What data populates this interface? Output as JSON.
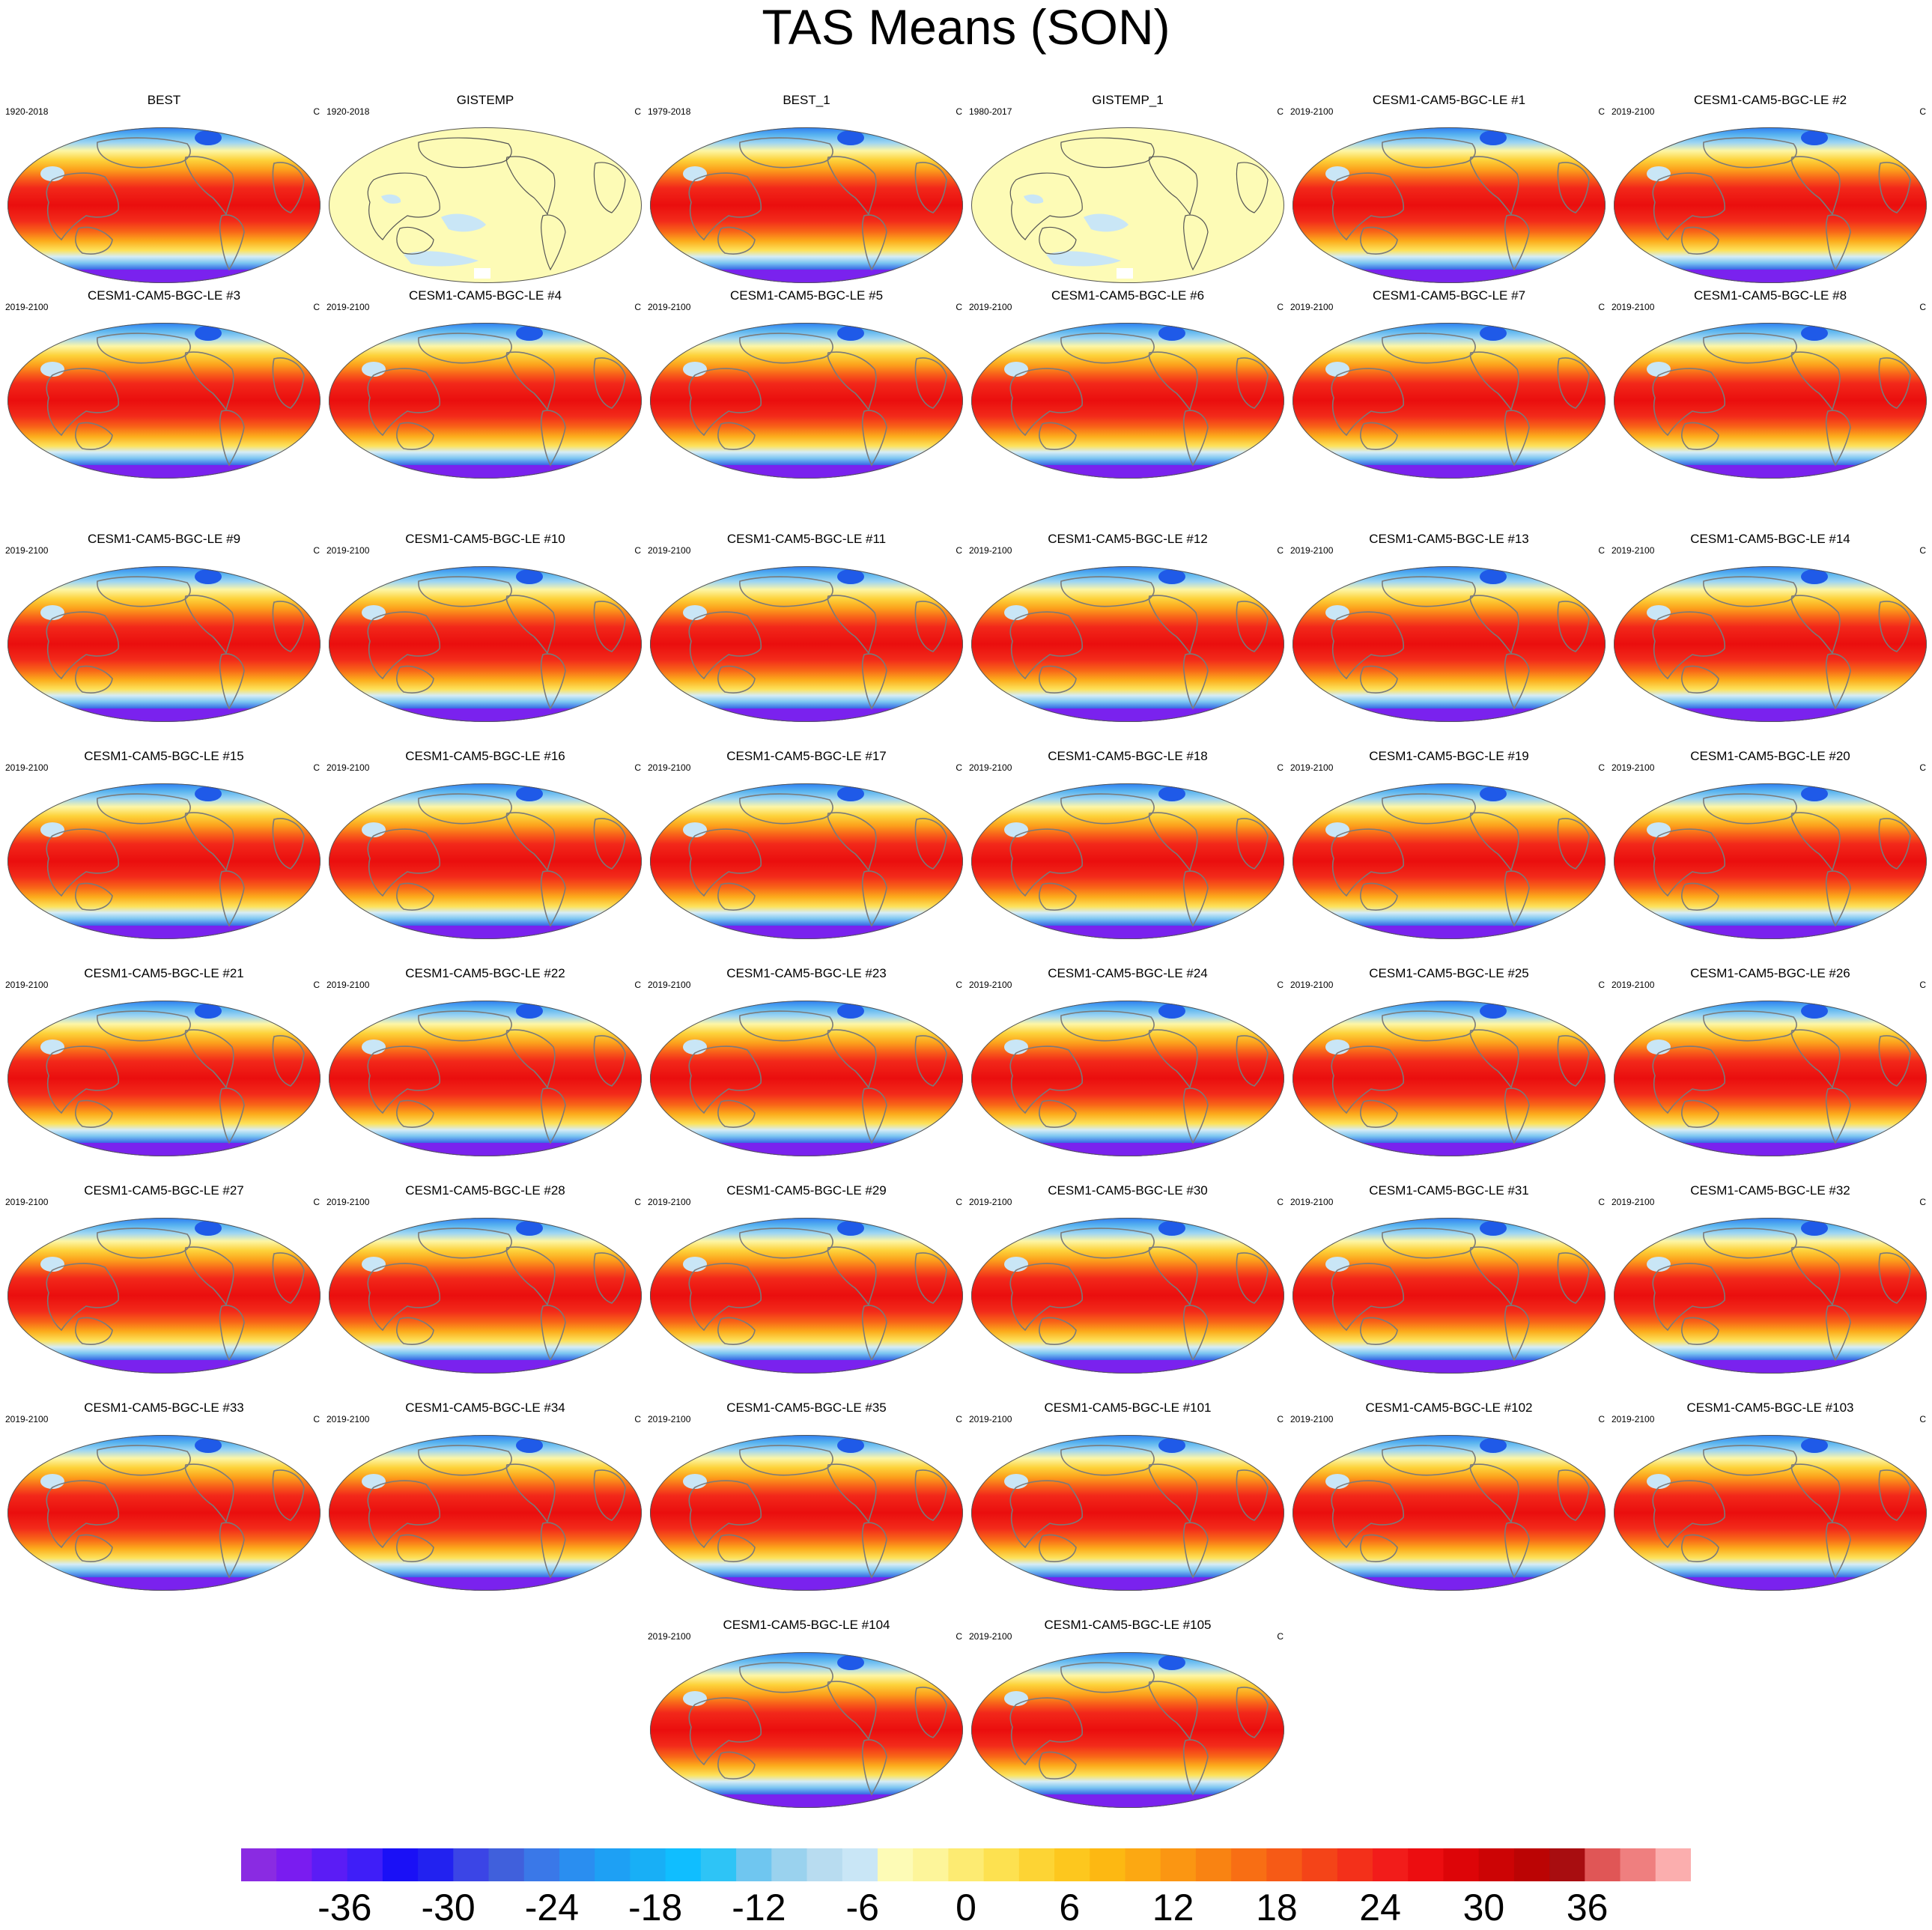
{
  "figure": {
    "title": "TAS Means (SON)",
    "units": "C"
  },
  "panels": [
    {
      "title": "BEST",
      "period": "1920-2018",
      "kind": "model"
    },
    {
      "title": "GISTEMP",
      "period": "1920-2018",
      "kind": "anomaly"
    },
    {
      "title": "BEST_1",
      "period": "1979-2018",
      "kind": "model"
    },
    {
      "title": "GISTEMP_1",
      "period": "1980-2017",
      "kind": "anomaly"
    },
    {
      "title": "CESM1-CAM5-BGC-LE #1",
      "period": "2019-2100",
      "kind": "model"
    },
    {
      "title": "CESM1-CAM5-BGC-LE #2",
      "period": "2019-2100",
      "kind": "model"
    },
    {
      "title": "CESM1-CAM5-BGC-LE #3",
      "period": "2019-2100",
      "kind": "model"
    },
    {
      "title": "CESM1-CAM5-BGC-LE #4",
      "period": "2019-2100",
      "kind": "model"
    },
    {
      "title": "CESM1-CAM5-BGC-LE #5",
      "period": "2019-2100",
      "kind": "model"
    },
    {
      "title": "CESM1-CAM5-BGC-LE #6",
      "period": "2019-2100",
      "kind": "model"
    },
    {
      "title": "CESM1-CAM5-BGC-LE #7",
      "period": "2019-2100",
      "kind": "model"
    },
    {
      "title": "CESM1-CAM5-BGC-LE #8",
      "period": "2019-2100",
      "kind": "model"
    },
    {
      "title": "CESM1-CAM5-BGC-LE #9",
      "period": "2019-2100",
      "kind": "model"
    },
    {
      "title": "CESM1-CAM5-BGC-LE #10",
      "period": "2019-2100",
      "kind": "model"
    },
    {
      "title": "CESM1-CAM5-BGC-LE #11",
      "period": "2019-2100",
      "kind": "model"
    },
    {
      "title": "CESM1-CAM5-BGC-LE #12",
      "period": "2019-2100",
      "kind": "model"
    },
    {
      "title": "CESM1-CAM5-BGC-LE #13",
      "period": "2019-2100",
      "kind": "model"
    },
    {
      "title": "CESM1-CAM5-BGC-LE #14",
      "period": "2019-2100",
      "kind": "model"
    },
    {
      "title": "CESM1-CAM5-BGC-LE #15",
      "period": "2019-2100",
      "kind": "model"
    },
    {
      "title": "CESM1-CAM5-BGC-LE #16",
      "period": "2019-2100",
      "kind": "model"
    },
    {
      "title": "CESM1-CAM5-BGC-LE #17",
      "period": "2019-2100",
      "kind": "model"
    },
    {
      "title": "CESM1-CAM5-BGC-LE #18",
      "period": "2019-2100",
      "kind": "model"
    },
    {
      "title": "CESM1-CAM5-BGC-LE #19",
      "period": "2019-2100",
      "kind": "model"
    },
    {
      "title": "CESM1-CAM5-BGC-LE #20",
      "period": "2019-2100",
      "kind": "model"
    },
    {
      "title": "CESM1-CAM5-BGC-LE #21",
      "period": "2019-2100",
      "kind": "model"
    },
    {
      "title": "CESM1-CAM5-BGC-LE #22",
      "period": "2019-2100",
      "kind": "model"
    },
    {
      "title": "CESM1-CAM5-BGC-LE #23",
      "period": "2019-2100",
      "kind": "model"
    },
    {
      "title": "CESM1-CAM5-BGC-LE #24",
      "period": "2019-2100",
      "kind": "model"
    },
    {
      "title": "CESM1-CAM5-BGC-LE #25",
      "period": "2019-2100",
      "kind": "model"
    },
    {
      "title": "CESM1-CAM5-BGC-LE #26",
      "period": "2019-2100",
      "kind": "model"
    },
    {
      "title": "CESM1-CAM5-BGC-LE #27",
      "period": "2019-2100",
      "kind": "model"
    },
    {
      "title": "CESM1-CAM5-BGC-LE #28",
      "period": "2019-2100",
      "kind": "model"
    },
    {
      "title": "CESM1-CAM5-BGC-LE #29",
      "period": "2019-2100",
      "kind": "model"
    },
    {
      "title": "CESM1-CAM5-BGC-LE #30",
      "period": "2019-2100",
      "kind": "model"
    },
    {
      "title": "CESM1-CAM5-BGC-LE #31",
      "period": "2019-2100",
      "kind": "model"
    },
    {
      "title": "CESM1-CAM5-BGC-LE #32",
      "period": "2019-2100",
      "kind": "model"
    },
    {
      "title": "CESM1-CAM5-BGC-LE #33",
      "period": "2019-2100",
      "kind": "model"
    },
    {
      "title": "CESM1-CAM5-BGC-LE #34",
      "period": "2019-2100",
      "kind": "model"
    },
    {
      "title": "CESM1-CAM5-BGC-LE #35",
      "period": "2019-2100",
      "kind": "model"
    },
    {
      "title": "CESM1-CAM5-BGC-LE #101",
      "period": "2019-2100",
      "kind": "model"
    },
    {
      "title": "CESM1-CAM5-BGC-LE #102",
      "period": "2019-2100",
      "kind": "model"
    },
    {
      "title": "CESM1-CAM5-BGC-LE #103",
      "period": "2019-2100",
      "kind": "model"
    },
    {
      "title": "CESM1-CAM5-BGC-LE #104",
      "period": "2019-2100",
      "kind": "model"
    },
    {
      "title": "CESM1-CAM5-BGC-LE #105",
      "period": "2019-2100",
      "kind": "model"
    }
  ],
  "chart_data": {
    "type": "heatmap",
    "projection": "Robinson (Pacific-centered)",
    "colorbar": {
      "tick_labels": [
        "-36",
        "-30",
        "-24",
        "-18",
        "-12",
        "-6",
        "0",
        "6",
        "12",
        "18",
        "24",
        "30",
        "36"
      ],
      "tick_values": [
        -36,
        -30,
        -24,
        -18,
        -12,
        -6,
        0,
        6,
        12,
        18,
        24,
        30,
        36
      ],
      "range": [
        -42,
        42
      ],
      "step": 2,
      "colors": [
        "#8a2be2",
        "#7a1cf0",
        "#5b1cf5",
        "#3f1ef8",
        "#1a10f6",
        "#2222f0",
        "#3b45e6",
        "#4060dc",
        "#3a78e8",
        "#2a8ef0",
        "#1ea0f4",
        "#18aff6",
        "#10beff",
        "#2ec4f6",
        "#6fc6f0",
        "#9ad2ee",
        "#b8dcf0",
        "#c9e6f6",
        "#fdfbb6",
        "#fdf59a",
        "#fdeb72",
        "#fde150",
        "#fdd434",
        "#fdc71e",
        "#fdb812",
        "#fca812",
        "#fb9612",
        "#f98312",
        "#f86e14",
        "#f65a16",
        "#f44418",
        "#f3301a",
        "#f21c1a",
        "#ec0d10",
        "#dd0508",
        "#cc0405",
        "#bb0404",
        "#a80d10",
        "#e05656",
        "#ef7f7f",
        "#fbaeae"
      ]
    }
  }
}
